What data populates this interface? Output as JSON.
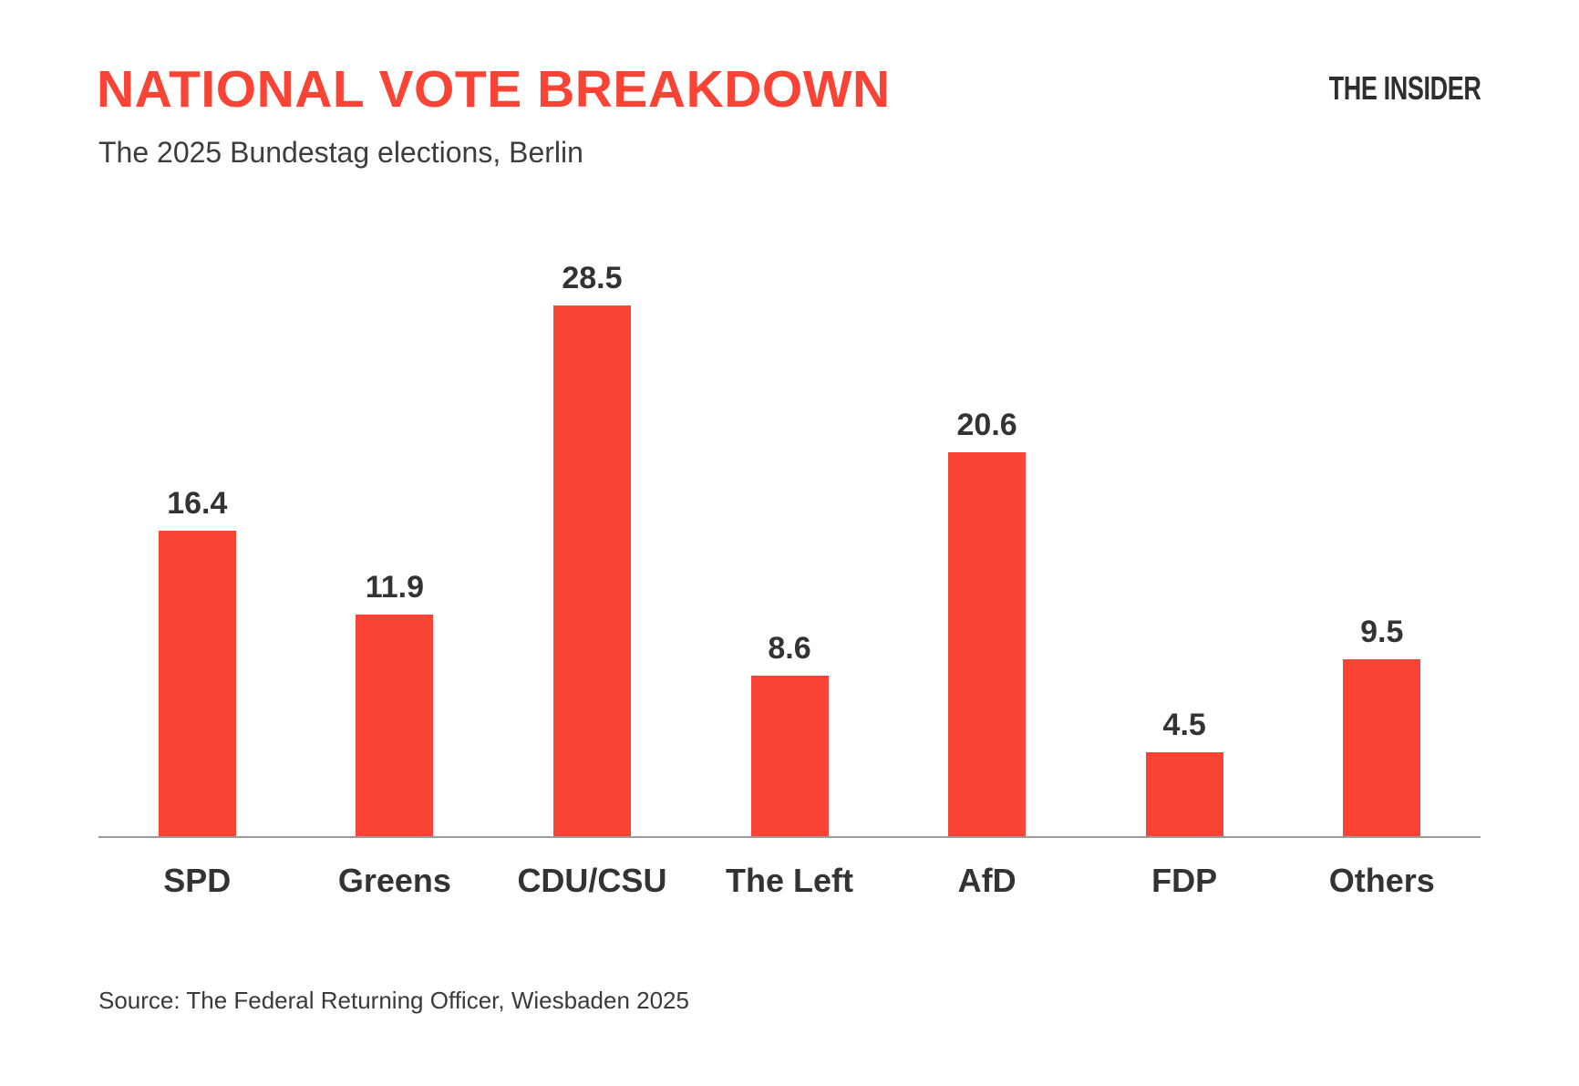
{
  "header": {
    "title": "NATIONAL VOTE BREAKDOWN",
    "subtitle": "The 2025 Bundestag elections, Berlin",
    "brand": "THE INSIDER"
  },
  "chart_data": {
    "type": "bar",
    "categories": [
      "SPD",
      "Greens",
      "CDU/CSU",
      "The Left",
      "AfD",
      "FDP",
      "Others"
    ],
    "values": [
      16.4,
      11.9,
      28.5,
      8.6,
      20.6,
      4.5,
      9.5
    ],
    "title": "NATIONAL VOTE BREAKDOWN",
    "subtitle": "The 2025 Bundestag elections, Berlin",
    "xlabel": "",
    "ylabel": "",
    "ylim": [
      0,
      30
    ],
    "grid": false,
    "legend": false,
    "value_labels": true,
    "bar_color": "#F94334"
  },
  "footer": {
    "source": "Source: The Federal Returning Officer, Wiesbaden 2025"
  },
  "colors": {
    "accent_red": "#F94334",
    "text_dark": "#333333",
    "axis_line": "#9b9b9b"
  }
}
